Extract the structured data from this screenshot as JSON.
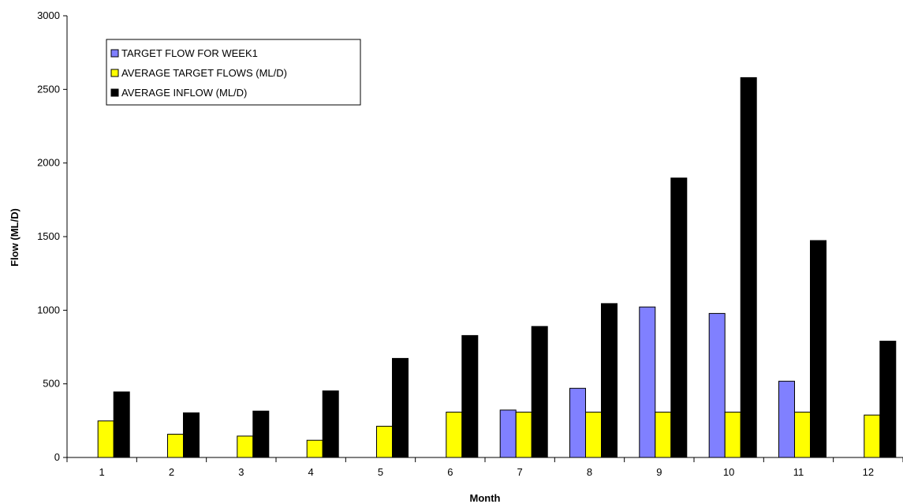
{
  "chart_data": {
    "type": "bar",
    "title": "",
    "xlabel": "Month",
    "ylabel": "Flow (ML/D)",
    "ylim": [
      0,
      3000
    ],
    "yticks": [
      0,
      500,
      1000,
      1500,
      2000,
      2500,
      3000
    ],
    "categories": [
      "1",
      "2",
      "3",
      "4",
      "5",
      "6",
      "7",
      "8",
      "9",
      "10",
      "11",
      "12"
    ],
    "legend_position": "top-left",
    "grid": false,
    "series": [
      {
        "name": "TARGET FLOW FOR WEEK1",
        "color": "#8080ff",
        "values": [
          0,
          0,
          0,
          0,
          0,
          0,
          322,
          470,
          1022,
          978,
          518,
          0
        ]
      },
      {
        "name": "AVERAGE TARGET FLOWS (ML/D)",
        "color": "#ffff00",
        "values": [
          248,
          158,
          145,
          117,
          212,
          308,
          308,
          308,
          308,
          308,
          308,
          288
        ]
      },
      {
        "name": "AVERAGE INFLOW (ML/D)",
        "color": "#000000",
        "values": [
          445,
          303,
          315,
          452,
          673,
          828,
          890,
          1045,
          1898,
          2580,
          1473,
          790
        ]
      }
    ]
  }
}
